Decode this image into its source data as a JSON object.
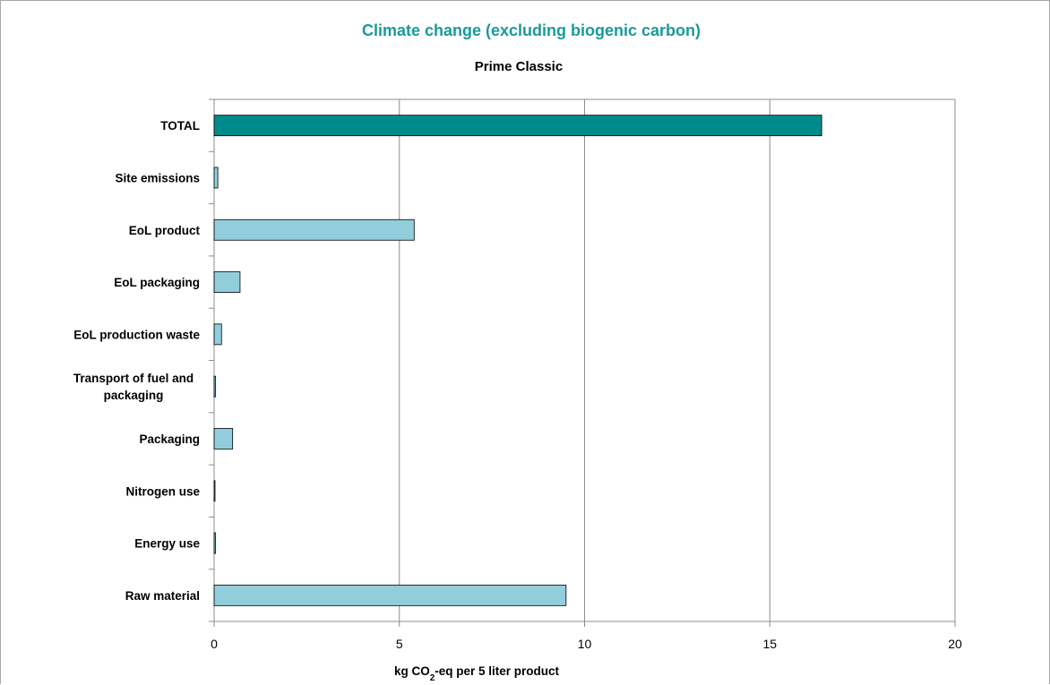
{
  "chart_data": {
    "type": "bar",
    "orientation": "horizontal",
    "title": "Climate change (excluding biogenic carbon)",
    "subtitle": "Prime Classic",
    "xlabel": {
      "prefix": "kg CO",
      "subscript": "2",
      "suffix": "-eq per 5 liter product"
    },
    "ylabel": "",
    "xlim": [
      0,
      20
    ],
    "xticks": [
      0,
      5,
      10,
      15,
      20
    ],
    "grid": "vertical",
    "legend": "none",
    "categories": [
      [
        "TOTAL"
      ],
      [
        "Site emissions"
      ],
      [
        "EoL product"
      ],
      [
        "EoL packaging"
      ],
      [
        "EoL production waste"
      ],
      [
        "Transport of fuel and",
        "packaging"
      ],
      [
        "Packaging"
      ],
      [
        "Nitrogen use"
      ],
      [
        "Energy use"
      ],
      [
        "Raw material"
      ]
    ],
    "values": [
      16.4,
      0.1,
      5.4,
      0.7,
      0.2,
      0.04,
      0.5,
      0.02,
      0.04,
      9.5
    ],
    "colors": {
      "title": "#1a9a9a",
      "total_bar": "#008b8b",
      "bar": "#92cddc",
      "bar_stroke": "#000000",
      "grid": "#8c8c8c",
      "axis": "#8c8c8c"
    }
  }
}
